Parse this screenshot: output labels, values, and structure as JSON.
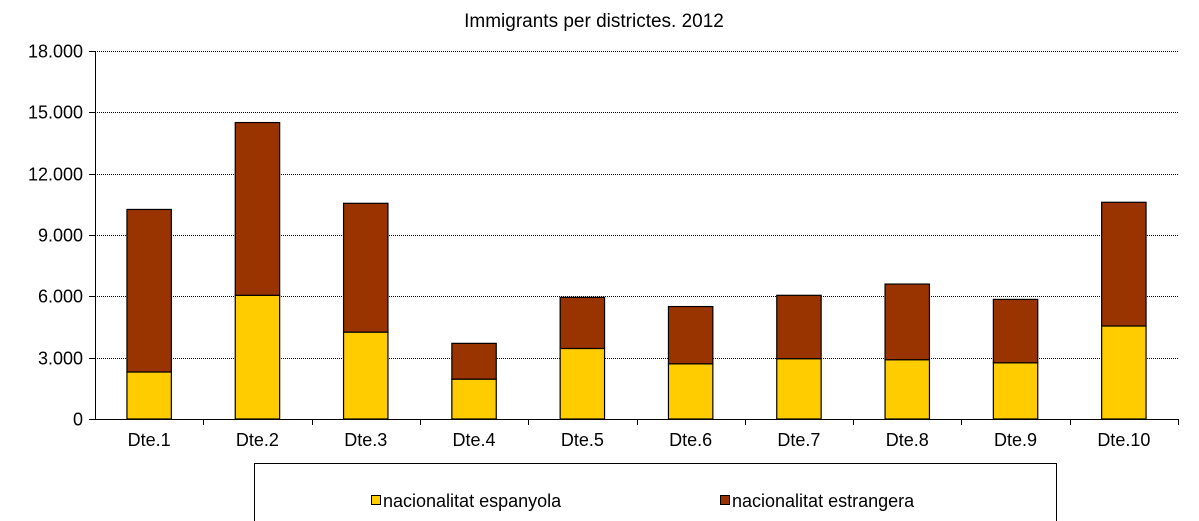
{
  "chart_data": {
    "type": "bar",
    "stacked": true,
    "title": "Immigrants per districtes. 2012",
    "xlabel": "",
    "ylabel": "",
    "categories": [
      "Dte.1",
      "Dte.2",
      "Dte.3",
      "Dte.4",
      "Dte.5",
      "Dte.6",
      "Dte.7",
      "Dte.8",
      "Dte.9",
      "Dte.10"
    ],
    "series": [
      {
        "name": "nacionalitat espanyola",
        "color": "#ffcc00",
        "values": [
          2300,
          6050,
          4250,
          1950,
          3450,
          2700,
          2950,
          2900,
          2750,
          4550
        ]
      },
      {
        "name": "nacionalitat estrangera",
        "color": "#993300",
        "values": [
          7950,
          8450,
          6300,
          1750,
          2500,
          2800,
          3100,
          3700,
          3100,
          6050
        ]
      }
    ],
    "ylim": [
      0,
      18000
    ],
    "yticks": [
      0,
      3000,
      6000,
      9000,
      12000,
      15000,
      18000
    ],
    "ytick_labels": [
      "0",
      "3.000",
      "6.000",
      "9.000",
      "12.000",
      "15.000",
      "18.000"
    ],
    "grid": true,
    "legend_position": "bottom"
  }
}
